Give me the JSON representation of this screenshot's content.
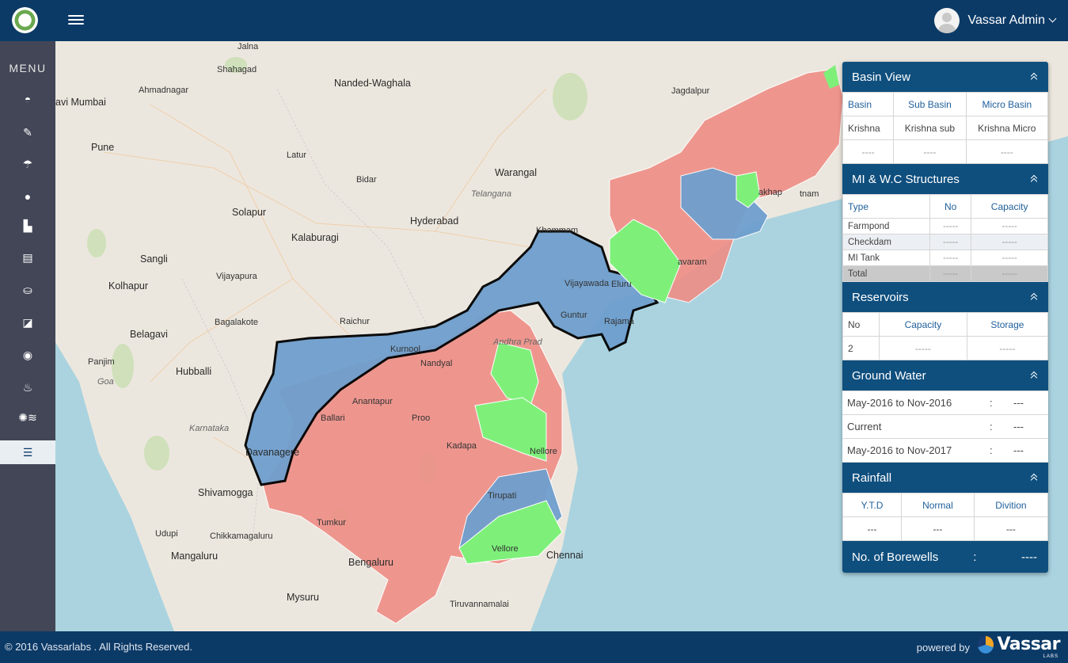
{
  "header": {
    "user_name": "Vassar  Admin"
  },
  "sidebar": {
    "menu_label": "MENU",
    "items": [
      {
        "icon": "basin-icon"
      },
      {
        "icon": "edit-icon"
      },
      {
        "icon": "rain-icon"
      },
      {
        "icon": "water-drop-icon"
      },
      {
        "icon": "structure-icon"
      },
      {
        "icon": "tank-icon"
      },
      {
        "icon": "reservoir-icon"
      },
      {
        "icon": "canal-icon"
      },
      {
        "icon": "groundwater-icon"
      },
      {
        "icon": "borewell-icon"
      },
      {
        "icon": "weather-icon"
      },
      {
        "icon": "water-level-icon",
        "active": true
      }
    ]
  },
  "map": {
    "cities": [
      "Jalna",
      "Shahagad",
      "Nanded-Waghala",
      "Ahmadnagar",
      "avi Mumbai",
      "Pune",
      "Latur",
      "Bidar",
      "Warangal",
      "Telangana",
      "Solapur",
      "Kalaburagi",
      "Hyderabad",
      "Khammam",
      "Sangli",
      "Vijayapura",
      "Kolhapur",
      "Bagalakote",
      "Raichur",
      "Belagavi",
      "Panjim",
      "Goa",
      "Hubballi",
      "Karnataka",
      "Davanagere",
      "Shivamogga",
      "Udupi",
      "Chikkamagaluru",
      "Mangaluru",
      "Mysuru",
      "Bengaluru",
      "Tiruvannamalai",
      "Chennai",
      "Jagdalpur",
      "Vijayawada",
      "Guntur",
      "Eluru",
      "Rajama",
      "Kurnool",
      "Nandyal",
      "Anantapur",
      "Kadapa",
      "Nellore",
      "Tirupati",
      "Vellore",
      "Ballari",
      "Andhra Prad",
      "Proo",
      "Tumkur",
      "avaram",
      "akhap",
      "tnam",
      "Rajama"
    ]
  },
  "panel": {
    "basin_view": {
      "title": "Basin View",
      "headers": [
        "Basin",
        "Sub Basin",
        "Micro Basin"
      ],
      "row1": [
        "Krishna",
        "Krishna sub",
        "Krishna Micro"
      ],
      "row2": [
        "----",
        "----",
        "----"
      ]
    },
    "mi_wc": {
      "title": "MI & W.C Structures",
      "headers": [
        "Type",
        "No",
        "Capacity"
      ],
      "rows": [
        [
          "Farmpond",
          "-----",
          "-----"
        ],
        [
          "Checkdam",
          "-----",
          "-----"
        ],
        [
          "MI Tank",
          "-----",
          "-----"
        ],
        [
          "Total",
          "-----",
          "-----"
        ]
      ]
    },
    "reservoirs": {
      "title": "Reservoirs",
      "headers": [
        "No",
        "Capacity",
        "Storage"
      ],
      "row": [
        "2",
        "-----",
        "-----"
      ]
    },
    "ground_water": {
      "title": "Ground Water",
      "rows": [
        {
          "label": "May-2016 to Nov-2016",
          "sep": ":",
          "value": "---"
        },
        {
          "label": "Current",
          "sep": ":",
          "value": "---"
        },
        {
          "label": "May-2016 to Nov-2017",
          "sep": ":",
          "value": "---"
        }
      ]
    },
    "rainfall": {
      "title": "Rainfall",
      "headers": [
        "Y.T.D",
        "Normal",
        "Divition"
      ],
      "row": [
        "---",
        "---",
        "---"
      ]
    },
    "borewells": {
      "label": "No. of Borewells",
      "sep": ":",
      "value": "----"
    }
  },
  "footer": {
    "copyright": "© 2016 Vassarlabs . All Rights Reserved.",
    "powered_by": "powered by",
    "brand": "Vassar",
    "brand_sub": "LABS"
  },
  "colors": {
    "header_bg": "#0c3a67",
    "sidebar_bg": "#424656",
    "panel_header_bg": "#0f4f7e",
    "basin_red": "#ef8e86",
    "basin_blue": "#6f9fce",
    "basin_green": "#7ef07a"
  }
}
